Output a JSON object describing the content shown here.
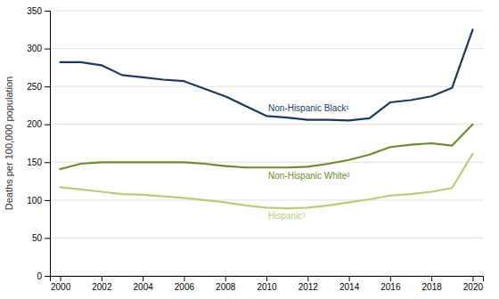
{
  "chart_data": {
    "type": "line",
    "ylabel": "Deaths per 100,000 population",
    "x": [
      2000,
      2001,
      2002,
      2003,
      2004,
      2005,
      2006,
      2007,
      2008,
      2009,
      2010,
      2011,
      2012,
      2013,
      2014,
      2015,
      2016,
      2017,
      2018,
      2019,
      2020
    ],
    "series": [
      {
        "name": "Non-Hispanic Black¹",
        "color": "#1a3a5c",
        "values": [
          282,
          282,
          278,
          265,
          262,
          259,
          257,
          247,
          237,
          224,
          211,
          209,
          206,
          206,
          205,
          208,
          229,
          232,
          237,
          248,
          325
        ]
      },
      {
        "name": "Non-Hispanic White²",
        "color": "#6a8c2a",
        "values": [
          141,
          148,
          150,
          150,
          150,
          150,
          150,
          148,
          145,
          143,
          143,
          143,
          144,
          148,
          153,
          160,
          170,
          173,
          175,
          172,
          200
        ]
      },
      {
        "name": "Hispanic³",
        "color": "#b8cc7a",
        "values": [
          117,
          114,
          111,
          108,
          107,
          105,
          103,
          100,
          97,
          93,
          90,
          89,
          90,
          93,
          97,
          101,
          106,
          108,
          111,
          116,
          161
        ]
      }
    ],
    "xlim": [
      1999.5,
      2020.5
    ],
    "xticks": [
      2000,
      2002,
      2004,
      2006,
      2008,
      2010,
      2012,
      2014,
      2016,
      2018,
      2020
    ],
    "ylim": [
      0,
      350
    ],
    "yticks": [
      0,
      50,
      100,
      150,
      200,
      250,
      300,
      350
    ],
    "grid": true
  }
}
